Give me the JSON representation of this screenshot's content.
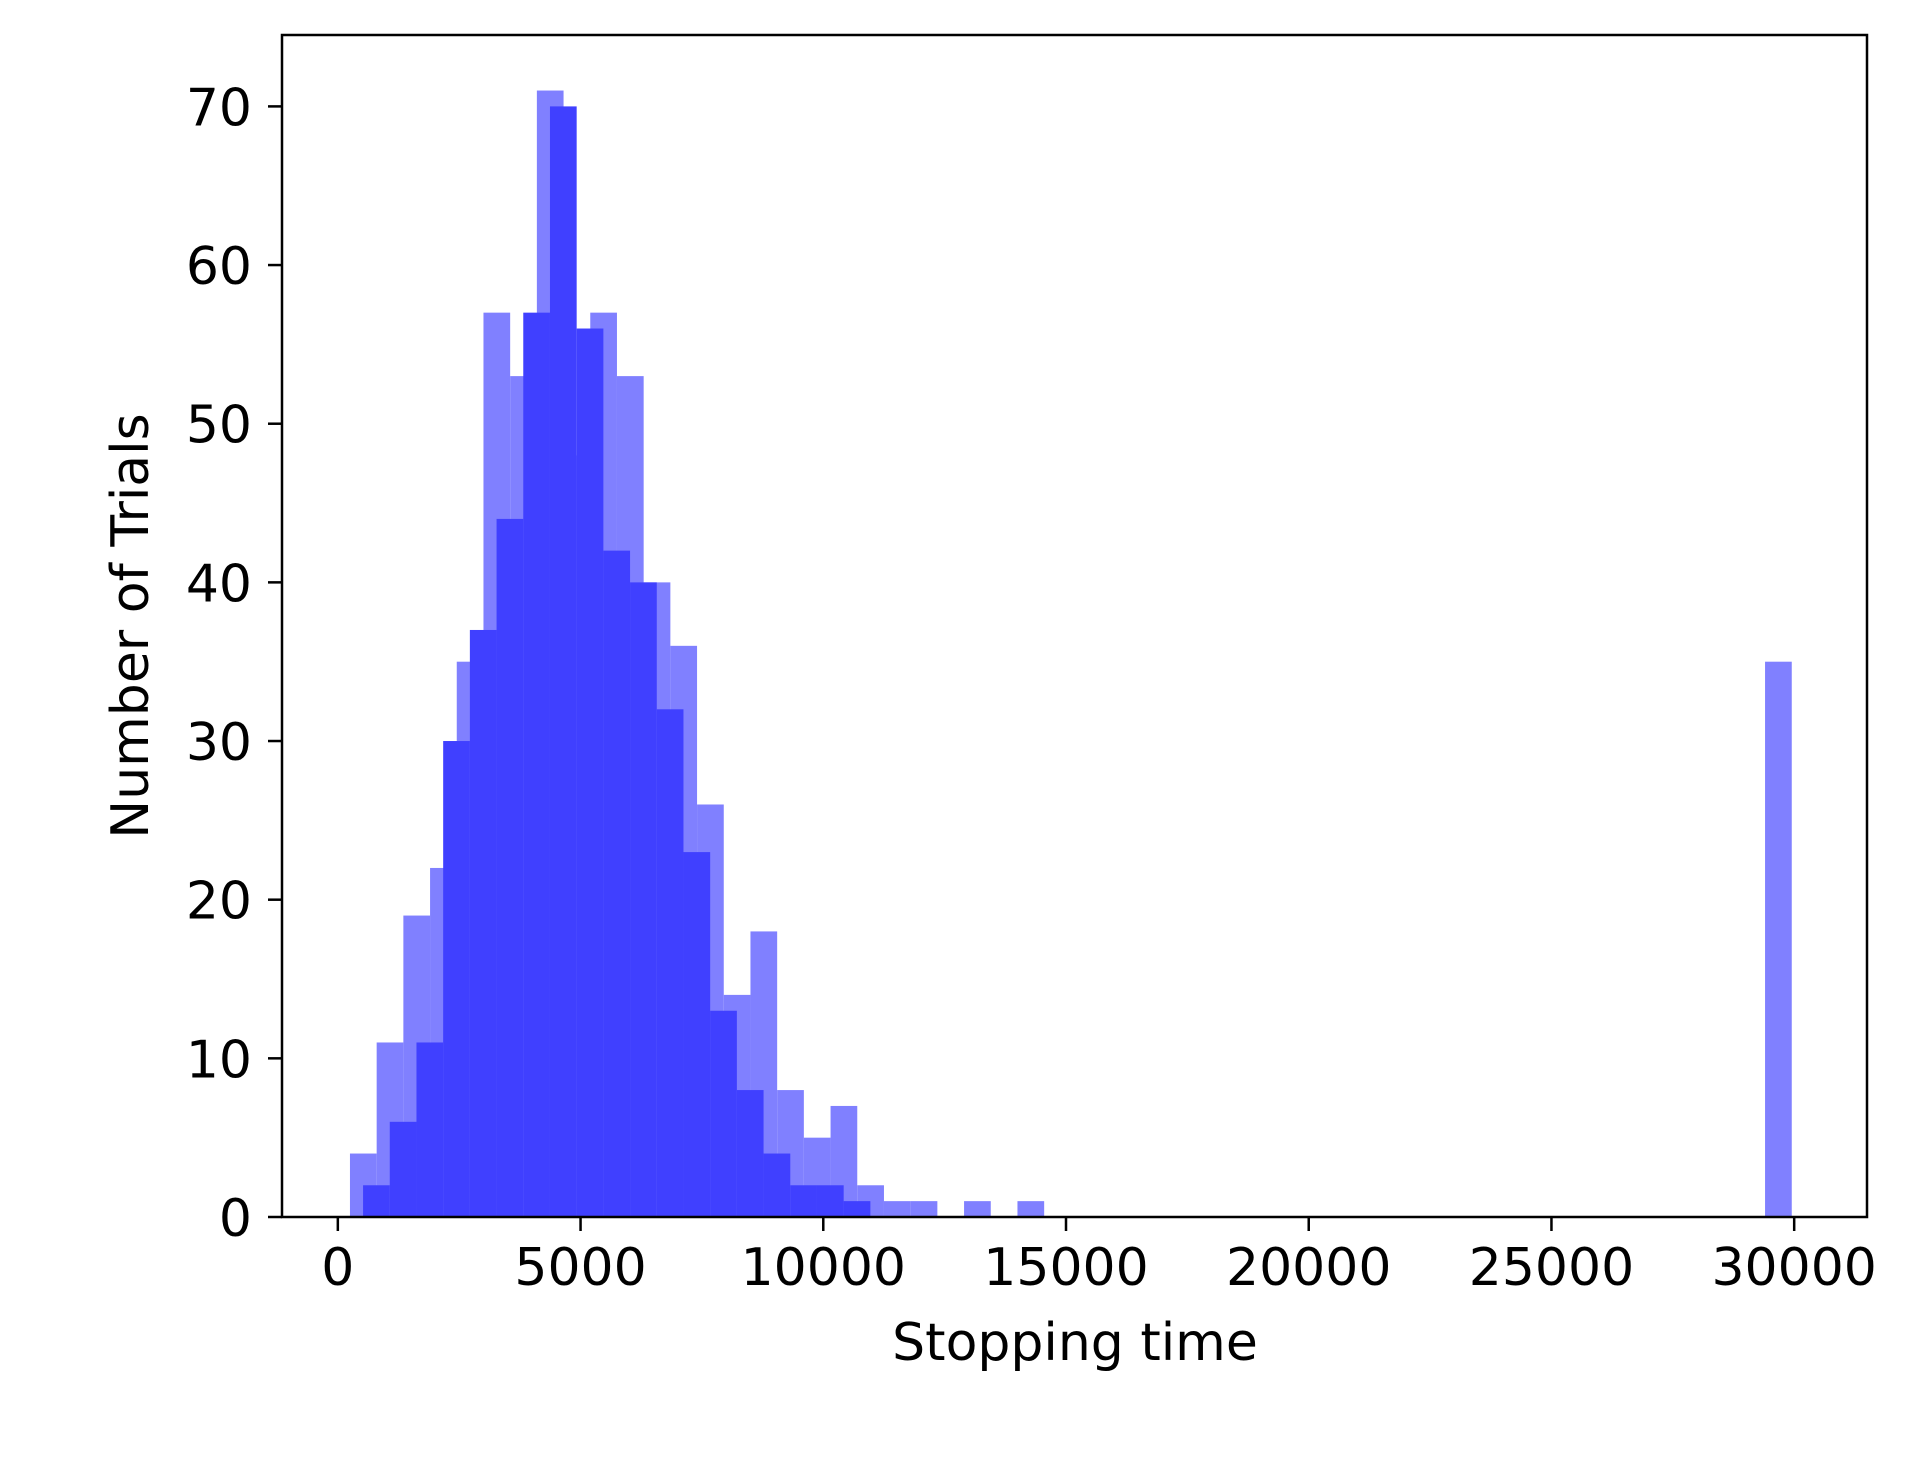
{
  "chart_data": {
    "type": "bar",
    "title": "",
    "xlabel": "Stopping time",
    "ylabel": "Number of Trials",
    "xlim": [
      -1150,
      31500
    ],
    "ylim": [
      0,
      74.5
    ],
    "xticks": [
      0,
      5000,
      10000,
      15000,
      20000,
      25000,
      30000
    ],
    "xtick_labels": [
      "0",
      "5000",
      "10000",
      "15000",
      "20000",
      "25000",
      "30000"
    ],
    "yticks": [
      0,
      10,
      20,
      30,
      40,
      50,
      60,
      70
    ],
    "ytick_labels": [
      "0",
      "10",
      "20",
      "30",
      "40",
      "50",
      "60",
      "70"
    ],
    "grid": false,
    "legend": "none",
    "series": [
      {
        "color": "#8080ff",
        "bin_edges": [
          250,
          800,
          1350,
          1900,
          2450,
          3000,
          3550,
          4100,
          4650,
          5200,
          5750,
          6300,
          6850,
          7400,
          7950,
          8500,
          9050,
          9600,
          10150,
          10700,
          11250,
          11800,
          12350,
          12900,
          13450,
          14000,
          14550,
          15100,
          15650,
          16200,
          16750,
          17300,
          17850,
          18400,
          18950,
          19500,
          20050,
          20600,
          21150,
          21700,
          22250,
          22800,
          23350,
          23900,
          24450,
          25000,
          25550,
          26100,
          26650,
          27200,
          27750,
          28300,
          28850,
          29400,
          29950
        ],
        "counts": [
          4,
          11,
          19,
          22,
          35,
          57,
          53,
          71,
          48,
          57,
          53,
          40,
          36,
          26,
          14,
          18,
          8,
          5,
          7,
          2,
          1,
          1,
          0,
          1,
          0,
          1,
          0,
          0,
          0,
          0,
          0,
          0,
          0,
          0,
          0,
          0,
          0,
          0,
          0,
          0,
          0,
          0,
          0,
          0,
          0,
          0,
          0,
          0,
          0,
          0,
          0,
          0,
          0,
          35
        ]
      },
      {
        "color": "#4040ff",
        "bin_edges": [
          520,
          1070,
          1620,
          2170,
          2720,
          3270,
          3820,
          4370,
          4920,
          5470,
          6020,
          6570,
          7120,
          7670,
          8220,
          8770,
          9320,
          9870,
          10420,
          10970,
          11520,
          12070,
          12620,
          13170,
          13720,
          14270,
          14820,
          15370,
          15920,
          16470,
          17020,
          17570,
          18120,
          18670,
          19220,
          19770,
          20320,
          20870,
          21420,
          21970,
          22520,
          23070,
          23620,
          24170,
          24720,
          25270,
          25820,
          26370,
          26920,
          27470,
          28020,
          28570,
          29120,
          29670
        ],
        "counts": [
          2,
          6,
          11,
          30,
          37,
          44,
          57,
          70,
          56,
          42,
          40,
          32,
          23,
          13,
          8,
          4,
          2,
          2,
          1,
          0,
          0,
          0,
          0,
          0,
          0,
          0,
          0,
          0,
          0,
          0,
          0,
          0,
          0,
          0,
          0,
          0,
          0,
          0,
          0,
          0,
          0,
          0,
          0,
          0,
          0,
          0,
          0,
          0,
          0,
          0,
          0,
          0,
          0
        ]
      }
    ]
  }
}
